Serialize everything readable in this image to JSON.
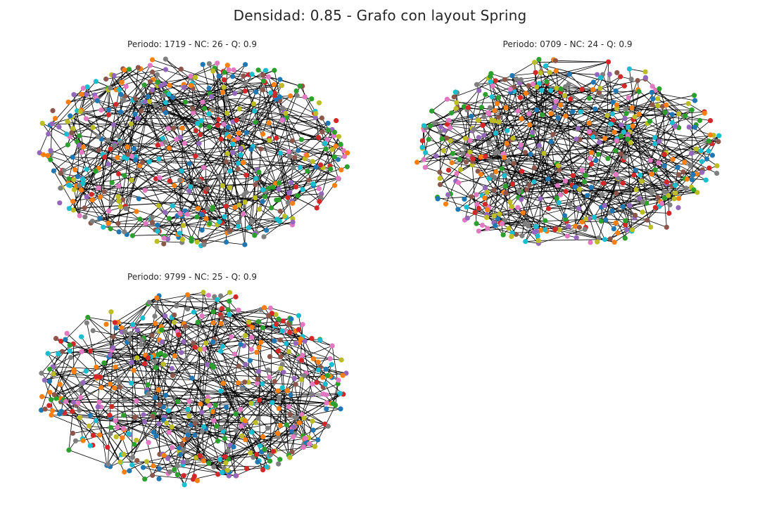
{
  "title": "Densidad: 0.85 - Grafo con layout Spring",
  "node_colors": [
    "#1f77b4",
    "#ff7f0e",
    "#2ca02c",
    "#d62728",
    "#9467bd",
    "#8c564b",
    "#e377c2",
    "#7f7f7f",
    "#bcbd22",
    "#17becf"
  ],
  "edge_color": "#000000",
  "panels": [
    {
      "title": "Periodo: 1719 - NC: 26 - Q: 0.9",
      "communities": 26,
      "modularity": 0.9,
      "nodes": 520,
      "edges": 600,
      "seed": 1719
    },
    {
      "title": "Periodo: 0709 - NC: 24 - Q: 0.9",
      "communities": 24,
      "modularity": 0.9,
      "nodes": 520,
      "edges": 600,
      "seed": 709
    },
    {
      "title": "Periodo: 9799 - NC: 25 - Q: 0.9",
      "communities": 25,
      "modularity": 0.9,
      "nodes": 520,
      "edges": 600,
      "seed": 9799
    }
  ]
}
